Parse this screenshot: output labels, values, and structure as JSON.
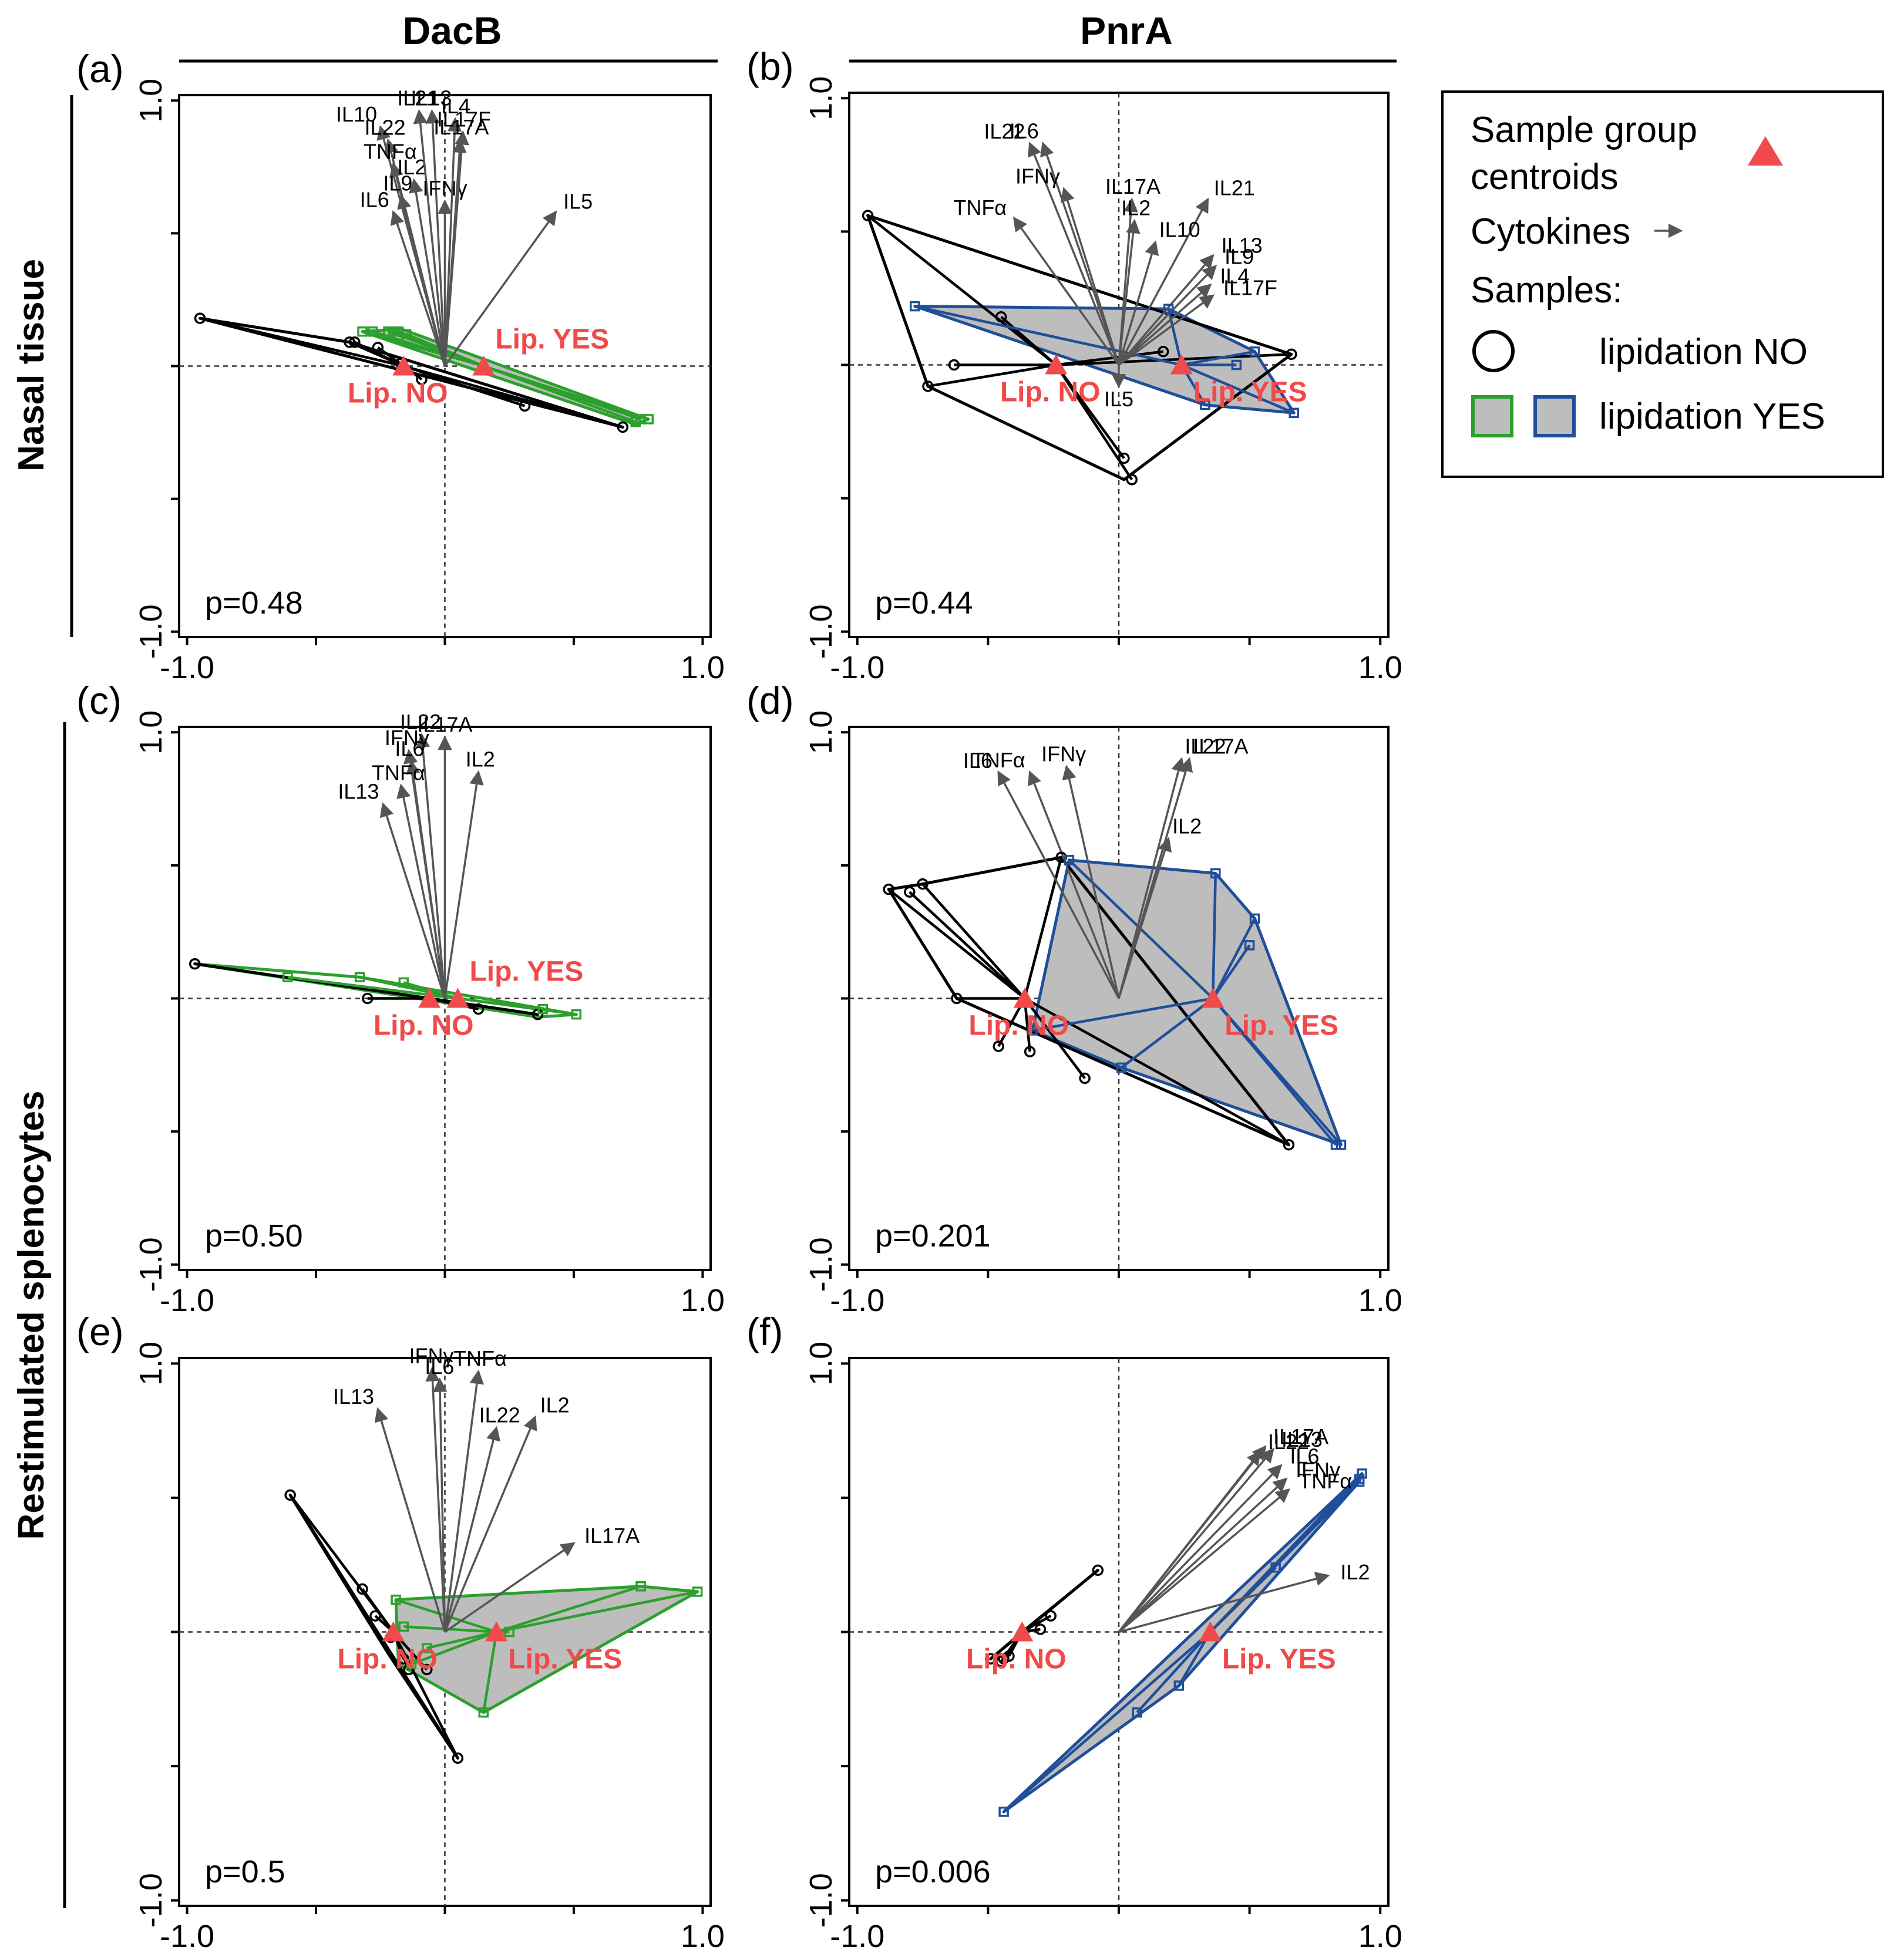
{
  "figure": {
    "columns": [
      "DacB",
      "PnrA"
    ],
    "rows": [
      "Nasal tissue",
      "Restimulated splenocytes"
    ]
  },
  "legend": {
    "centroid_label_1": "Sample group",
    "centroid_label_2": "centroids",
    "cytokines_label": "Cytokines",
    "samples_label": "Samples:",
    "no_label": "lipidation NO",
    "yes_label": "lipidation YES"
  },
  "colors": {
    "centroid": "#f04a4a",
    "dacb_yes": "#2ca02c",
    "pnra_yes": "#1f4e9a",
    "hull_fill": "#bdbdbd",
    "no": "#000000"
  },
  "chart_data": [
    {
      "type": "scatter",
      "id": "a",
      "label": "(a)",
      "protein": "DacB",
      "tissue": "Nasal tissue",
      "xlim": [
        -1.0,
        1.0
      ],
      "ylim": [
        -1.0,
        1.0
      ],
      "ticks": [
        "-1.0",
        "1.0"
      ],
      "p_value": "p=0.48",
      "yes_color": "#2ca02c",
      "no_fill": false,
      "yes_fill": true,
      "no_samples": [
        [
          -0.95,
          0.18
        ],
        [
          -0.37,
          0.09
        ],
        [
          -0.35,
          0.09
        ],
        [
          -0.26,
          0.07
        ],
        [
          -0.17,
          0.01
        ],
        [
          -0.09,
          -0.05
        ],
        [
          0.31,
          -0.15
        ],
        [
          0.69,
          -0.23
        ]
      ],
      "no_hull": [
        [
          -0.95,
          0.18
        ],
        [
          0.69,
          -0.23
        ],
        [
          -0.37,
          0.09
        ]
      ],
      "yes_samples": [
        [
          -0.32,
          0.13
        ],
        [
          -0.28,
          0.13
        ],
        [
          -0.22,
          0.13
        ],
        [
          -0.2,
          0.13
        ],
        [
          -0.18,
          0.13
        ],
        [
          -0.15,
          0.12
        ],
        [
          0.74,
          -0.21
        ],
        [
          0.76,
          -0.2
        ],
        [
          0.79,
          -0.2
        ]
      ],
      "yes_hull": [
        [
          -0.32,
          0.13
        ],
        [
          -0.17,
          0.14
        ],
        [
          0.79,
          -0.2
        ],
        [
          0.74,
          -0.22
        ]
      ],
      "centroids": [
        {
          "name": "Lip. NO",
          "x": -0.16,
          "y": 0.0
        },
        {
          "name": "Lip. YES",
          "x": 0.15,
          "y": 0.0
        }
      ],
      "cytokines": [
        {
          "name": "IL10",
          "x": -0.25,
          "y": 0.9
        },
        {
          "name": "IL22",
          "x": -0.22,
          "y": 0.85
        },
        {
          "name": "TNFα",
          "x": -0.2,
          "y": 0.76
        },
        {
          "name": "IL2",
          "x": -0.12,
          "y": 0.7
        },
        {
          "name": "IL9",
          "x": -0.17,
          "y": 0.64
        },
        {
          "name": "IL6",
          "x": -0.2,
          "y": 0.58
        },
        {
          "name": "IL21",
          "x": -0.1,
          "y": 0.96
        },
        {
          "name": "IL13",
          "x": -0.05,
          "y": 0.96
        },
        {
          "name": "IFNγ",
          "x": 0.0,
          "y": 0.62
        },
        {
          "name": "IL4",
          "x": 0.04,
          "y": 0.93
        },
        {
          "name": "IL17F",
          "x": 0.07,
          "y": 0.88
        },
        {
          "name": "IL17A",
          "x": 0.06,
          "y": 0.85
        },
        {
          "name": "IL5",
          "x": 0.43,
          "y": 0.58
        }
      ]
    },
    {
      "type": "scatter",
      "id": "b",
      "label": "(b)",
      "protein": "PnrA",
      "tissue": "Nasal tissue",
      "xlim": [
        -1.0,
        1.0
      ],
      "ylim": [
        -1.0,
        1.0
      ],
      "ticks": [
        "-1.0",
        "1.0"
      ],
      "p_value": "p=0.44",
      "yes_color": "#1f4e9a",
      "no_fill": false,
      "yes_fill": true,
      "no_samples": [
        [
          -0.96,
          0.56
        ],
        [
          -0.73,
          -0.08
        ],
        [
          -0.63,
          0.0
        ],
        [
          -0.45,
          0.18
        ],
        [
          0.02,
          -0.35
        ],
        [
          0.17,
          0.05
        ],
        [
          0.66,
          0.04
        ],
        [
          0.05,
          -0.43
        ]
      ],
      "no_hull": [
        [
          -0.96,
          0.56
        ],
        [
          0.66,
          0.04
        ],
        [
          0.02,
          -0.43
        ],
        [
          -0.73,
          -0.08
        ]
      ],
      "yes_samples": [
        [
          -0.78,
          0.22
        ],
        [
          0.19,
          0.21
        ],
        [
          0.45,
          0.0
        ],
        [
          0.52,
          0.05
        ],
        [
          0.33,
          -0.15
        ],
        [
          0.67,
          -0.18
        ]
      ],
      "yes_hull": [
        [
          -0.78,
          0.22
        ],
        [
          0.19,
          0.21
        ],
        [
          0.52,
          0.05
        ],
        [
          0.67,
          -0.18
        ],
        [
          0.33,
          -0.15
        ]
      ],
      "centroids": [
        {
          "name": "Lip. NO",
          "x": -0.24,
          "y": 0.0
        },
        {
          "name": "Lip. YES",
          "x": 0.24,
          "y": 0.0
        }
      ],
      "cytokines": [
        {
          "name": "IL22",
          "x": -0.34,
          "y": 0.83
        },
        {
          "name": "IL6",
          "x": -0.29,
          "y": 0.83
        },
        {
          "name": "IFNγ",
          "x": -0.21,
          "y": 0.66
        },
        {
          "name": "TNFα",
          "x": -0.4,
          "y": 0.55
        },
        {
          "name": "IL17A",
          "x": 0.05,
          "y": 0.62
        },
        {
          "name": "IL2",
          "x": 0.06,
          "y": 0.54
        },
        {
          "name": "IL21",
          "x": 0.34,
          "y": 0.62
        },
        {
          "name": "IL10",
          "x": 0.14,
          "y": 0.46
        },
        {
          "name": "IL13",
          "x": 0.36,
          "y": 0.41
        },
        {
          "name": "IL9",
          "x": 0.37,
          "y": 0.37
        },
        {
          "name": "IL4",
          "x": 0.35,
          "y": 0.3
        },
        {
          "name": "IL17F",
          "x": 0.36,
          "y": 0.26
        },
        {
          "name": "IL5",
          "x": 0.0,
          "y": -0.08
        }
      ]
    },
    {
      "type": "scatter",
      "id": "c",
      "label": "(c)",
      "protein": "DacB",
      "tissue": "Restimulated splenocytes",
      "xlim": [
        -1.0,
        1.0
      ],
      "ylim": [
        -1.0,
        1.0
      ],
      "ticks": [
        "-1.0",
        "1.0"
      ],
      "p_value": "p=0.50",
      "yes_color": "#2ca02c",
      "no_fill": false,
      "yes_fill": false,
      "no_samples": [
        [
          -0.97,
          0.13
        ],
        [
          0.36,
          -0.06
        ],
        [
          0.13,
          -0.04
        ],
        [
          -0.3,
          0.0
        ]
      ],
      "no_hull": [
        [
          -0.97,
          0.13
        ],
        [
          0.36,
          -0.06
        ]
      ],
      "yes_samples": [
        [
          -0.61,
          0.08
        ],
        [
          -0.33,
          0.08
        ],
        [
          -0.16,
          0.06
        ],
        [
          0.38,
          -0.04
        ],
        [
          0.51,
          -0.06
        ]
      ],
      "yes_hull": [
        [
          -0.97,
          0.13
        ],
        [
          -0.33,
          0.08
        ],
        [
          0.51,
          -0.06
        ],
        [
          0.36,
          -0.07
        ]
      ],
      "centroids": [
        {
          "name": "Lip. NO",
          "x": -0.06,
          "y": 0.0
        },
        {
          "name": "Lip. YES",
          "x": 0.05,
          "y": 0.0
        }
      ],
      "cytokines": [
        {
          "name": "IL22",
          "x": -0.09,
          "y": 0.99
        },
        {
          "name": "IFNγ",
          "x": -0.14,
          "y": 0.93
        },
        {
          "name": "IL6",
          "x": -0.13,
          "y": 0.89
        },
        {
          "name": "TNFα",
          "x": -0.17,
          "y": 0.8
        },
        {
          "name": "IL13",
          "x": -0.24,
          "y": 0.73
        },
        {
          "name": "IL17A",
          "x": 0.0,
          "y": 0.98
        },
        {
          "name": "IL2",
          "x": 0.13,
          "y": 0.85
        }
      ]
    },
    {
      "type": "scatter",
      "id": "d",
      "label": "(d)",
      "protein": "PnrA",
      "tissue": "Restimulated splenocytes",
      "xlim": [
        -1.0,
        1.0
      ],
      "ylim": [
        -1.0,
        1.0
      ],
      "ticks": [
        "-1.0",
        "1.0"
      ],
      "p_value": "p=0.201",
      "yes_color": "#1f4e9a",
      "no_fill": false,
      "yes_fill": true,
      "no_samples": [
        [
          -0.88,
          0.41
        ],
        [
          -0.8,
          0.4
        ],
        [
          -0.75,
          0.43
        ],
        [
          -0.62,
          0.0
        ],
        [
          -0.46,
          -0.18
        ],
        [
          -0.34,
          -0.2
        ],
        [
          -0.13,
          -0.3
        ],
        [
          0.65,
          -0.55
        ],
        [
          -0.22,
          0.53
        ]
      ],
      "no_hull": [
        [
          -0.88,
          0.41
        ],
        [
          -0.75,
          0.43
        ],
        [
          -0.22,
          0.53
        ],
        [
          0.65,
          -0.55
        ],
        [
          -0.62,
          0.0
        ]
      ],
      "yes_samples": [
        [
          -0.19,
          0.52
        ],
        [
          0.37,
          0.47
        ],
        [
          0.52,
          0.3
        ],
        [
          0.5,
          0.2
        ],
        [
          0.01,
          -0.26
        ],
        [
          0.83,
          -0.55
        ],
        [
          0.85,
          -0.55
        ],
        [
          -0.33,
          -0.12
        ]
      ],
      "yes_hull": [
        [
          -0.19,
          0.52
        ],
        [
          0.37,
          0.47
        ],
        [
          0.52,
          0.3
        ],
        [
          0.85,
          -0.55
        ],
        [
          0.01,
          -0.26
        ],
        [
          -0.33,
          -0.12
        ]
      ],
      "centroids": [
        {
          "name": "Lip. NO",
          "x": -0.36,
          "y": 0.0
        },
        {
          "name": "Lip. YES",
          "x": 0.36,
          "y": 0.0
        }
      ],
      "cytokines": [
        {
          "name": "IL6",
          "x": -0.46,
          "y": 0.85
        },
        {
          "name": "TNFα",
          "x": -0.34,
          "y": 0.85
        },
        {
          "name": "IFNγ",
          "x": -0.2,
          "y": 0.87
        },
        {
          "name": "IL22",
          "x": 0.24,
          "y": 0.9
        },
        {
          "name": "IL17A",
          "x": 0.27,
          "y": 0.9
        },
        {
          "name": "IL2",
          "x": 0.19,
          "y": 0.6
        }
      ]
    },
    {
      "type": "scatter",
      "id": "e",
      "label": "(e)",
      "protein": "DacB",
      "tissue": "Restimulated splenocytes",
      "xlim": [
        -1.0,
        1.0
      ],
      "ylim": [
        -1.0,
        1.0
      ],
      "ticks": [
        "-1.0",
        "1.0"
      ],
      "p_value": "p=0.5",
      "yes_color": "#2ca02c",
      "no_fill": false,
      "yes_fill": true,
      "no_samples": [
        [
          -0.6,
          0.51
        ],
        [
          -0.32,
          0.16
        ],
        [
          -0.27,
          0.06
        ],
        [
          -0.21,
          -0.02
        ],
        [
          -0.16,
          -0.1
        ],
        [
          -0.14,
          -0.14
        ],
        [
          -0.07,
          -0.14
        ],
        [
          0.05,
          -0.47
        ]
      ],
      "no_hull": [
        [
          -0.6,
          0.51
        ],
        [
          0.05,
          -0.47
        ],
        [
          -0.22,
          -0.08
        ]
      ],
      "yes_samples": [
        [
          -0.19,
          0.12
        ],
        [
          -0.16,
          0.02
        ],
        [
          -0.07,
          -0.06
        ],
        [
          -0.13,
          -0.12
        ],
        [
          0.25,
          0.0
        ],
        [
          0.15,
          -0.3
        ],
        [
          0.76,
          0.17
        ],
        [
          0.98,
          0.15
        ]
      ],
      "yes_hull": [
        [
          -0.19,
          0.12
        ],
        [
          0.76,
          0.17
        ],
        [
          0.98,
          0.15
        ],
        [
          0.15,
          -0.3
        ],
        [
          -0.18,
          -0.12
        ]
      ],
      "centroids": [
        {
          "name": "Lip. NO",
          "x": -0.2,
          "y": 0.0
        },
        {
          "name": "Lip. YES",
          "x": 0.2,
          "y": 0.0
        }
      ],
      "cytokines": [
        {
          "name": "IFNγ",
          "x": -0.05,
          "y": 0.98
        },
        {
          "name": "IL6",
          "x": -0.02,
          "y": 0.94
        },
        {
          "name": "TNFα",
          "x": 0.13,
          "y": 0.97
        },
        {
          "name": "IL13",
          "x": -0.26,
          "y": 0.83
        },
        {
          "name": "IL22",
          "x": 0.2,
          "y": 0.76
        },
        {
          "name": "IL2",
          "x": 0.35,
          "y": 0.8
        },
        {
          "name": "IL17A",
          "x": 0.5,
          "y": 0.33
        }
      ]
    },
    {
      "type": "scatter",
      "id": "f",
      "label": "(f)",
      "protein": "PnrA",
      "tissue": "Restimulated splenocytes",
      "xlim": [
        -1.0,
        1.0
      ],
      "ylim": [
        -1.0,
        1.0
      ],
      "ticks": [
        "-1.0",
        "1.0"
      ],
      "p_value": "p=0.006",
      "yes_color": "#1f4e9a",
      "no_fill": false,
      "yes_fill": true,
      "no_samples": [
        [
          -0.08,
          0.23
        ],
        [
          -0.26,
          0.06
        ],
        [
          -0.3,
          0.01
        ],
        [
          -0.42,
          -0.09
        ],
        [
          -0.44,
          -0.1
        ],
        [
          -0.45,
          -0.11
        ],
        [
          -0.49,
          -0.1
        ]
      ],
      "no_hull": [
        [
          -0.08,
          0.23
        ],
        [
          -0.49,
          -0.1
        ]
      ],
      "yes_samples": [
        [
          0.6,
          0.24
        ],
        [
          0.92,
          0.56
        ],
        [
          0.92,
          0.57
        ],
        [
          0.93,
          0.59
        ],
        [
          0.23,
          -0.2
        ],
        [
          0.07,
          -0.3
        ],
        [
          -0.44,
          -0.67
        ]
      ],
      "yes_hull": [
        [
          -0.44,
          -0.67
        ],
        [
          0.93,
          0.59
        ],
        [
          0.92,
          0.56
        ],
        [
          0.23,
          -0.2
        ]
      ],
      "centroids": [
        {
          "name": "Lip. NO",
          "x": -0.37,
          "y": 0.0
        },
        {
          "name": "Lip. YES",
          "x": 0.35,
          "y": 0.0
        }
      ],
      "cytokines": [
        {
          "name": "IL17A",
          "x": 0.56,
          "y": 0.69
        },
        {
          "name": "IL22",
          "x": 0.54,
          "y": 0.67
        },
        {
          "name": "IL13",
          "x": 0.59,
          "y": 0.68
        },
        {
          "name": "IL6",
          "x": 0.62,
          "y": 0.62
        },
        {
          "name": "IFNγ",
          "x": 0.64,
          "y": 0.57
        },
        {
          "name": "TNFα",
          "x": 0.65,
          "y": 0.53
        },
        {
          "name": "IL2",
          "x": 0.8,
          "y": 0.21
        }
      ]
    }
  ]
}
